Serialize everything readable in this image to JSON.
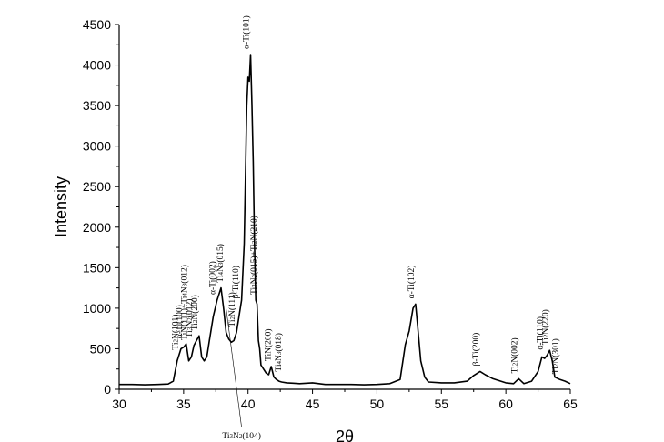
{
  "chart_data": {
    "type": "line",
    "title": "",
    "xlabel": "2θ",
    "ylabel": "Intensity",
    "xlim": [
      30,
      65
    ],
    "ylim": [
      0,
      4500
    ],
    "xticks": [
      30,
      35,
      40,
      45,
      50,
      55,
      60,
      65
    ],
    "yticks": [
      0,
      500,
      1000,
      1500,
      2000,
      2500,
      3000,
      3500,
      4000,
      4500
    ],
    "grid": false,
    "series": [
      {
        "x": [
          30,
          31,
          32,
          33,
          33.8,
          34.2,
          34.5,
          34.8,
          35.0,
          35.2,
          35.4,
          35.6,
          35.8,
          36.0,
          36.2,
          36.4,
          36.6,
          36.8,
          37.0,
          37.3,
          37.6,
          37.9,
          38.1,
          38.3,
          38.5,
          38.7,
          38.9,
          39.1,
          39.3,
          39.5,
          39.7,
          39.9,
          40.0,
          40.1,
          40.2,
          40.3,
          40.4,
          40.5,
          40.6,
          40.7,
          40.8,
          40.9,
          41.0,
          41.2,
          41.4,
          41.6,
          41.8,
          42.0,
          42.2,
          42.4,
          42.6,
          43.0,
          43.5,
          44,
          45,
          46,
          47,
          48,
          49,
          50,
          51,
          51.8,
          52.2,
          52.5,
          52.8,
          53.0,
          53.2,
          53.4,
          53.7,
          54,
          55,
          56,
          57,
          57.5,
          58,
          58.4,
          59,
          60,
          60.6,
          61,
          61.4,
          62,
          62.5,
          62.8,
          63.0,
          63.2,
          63.4,
          63.6,
          63.8,
          64.2,
          64.6,
          65
        ],
        "y": [
          60,
          60,
          55,
          60,
          65,
          100,
          350,
          500,
          520,
          560,
          350,
          400,
          540,
          600,
          660,
          400,
          350,
          400,
          600,
          900,
          1100,
          1250,
          1000,
          700,
          620,
          580,
          600,
          700,
          900,
          1100,
          1800,
          3500,
          3850,
          3800,
          4130,
          3500,
          2800,
          1800,
          1100,
          1050,
          600,
          500,
          300,
          250,
          200,
          180,
          280,
          150,
          120,
          100,
          90,
          80,
          75,
          70,
          80,
          60,
          60,
          60,
          55,
          60,
          70,
          120,
          550,
          720,
          1000,
          1050,
          700,
          350,
          150,
          90,
          80,
          80,
          100,
          170,
          220,
          180,
          130,
          80,
          70,
          130,
          70,
          100,
          220,
          400,
          380,
          420,
          480,
          350,
          150,
          120,
          100,
          70
        ]
      }
    ],
    "annotations": [
      {
        "text": "Ti2N(101)",
        "x": 34.7,
        "y": 420
      },
      {
        "text": "α-Ti(100)",
        "x": 35.0,
        "y": 560
      },
      {
        "text": "TiN(111)+Ti4N3(012)",
        "x": 35.4,
        "y": 540
      },
      {
        "text": "Ti3N2(012)",
        "x": 35.8,
        "y": 570
      },
      {
        "text": "Ti2N(200)",
        "x": 36.2,
        "y": 660
      },
      {
        "text": "α-Ti(002)",
        "x": 37.6,
        "y": 1100
      },
      {
        "text": "Ti4N3(015)",
        "x": 38.2,
        "y": 1250
      },
      {
        "text": "Ti2N(111)",
        "x": 39.1,
        "y": 700
      },
      {
        "text": "β-Ti(110)",
        "x": 39.4,
        "y": 1050
      },
      {
        "text": "α-Ti(101)",
        "x": 40.2,
        "y": 4130
      },
      {
        "text": "Ti3N2(015)+Ti2N(210)",
        "x": 40.8,
        "y": 1100
      },
      {
        "text": "TiN(200)",
        "x": 41.9,
        "y": 280
      },
      {
        "text": "Ti4N3(018)",
        "x": 42.7,
        "y": 150
      },
      {
        "text": "α-Ti(102)",
        "x": 53.0,
        "y": 1050
      },
      {
        "text": "β-Ti(200)",
        "x": 58.0,
        "y": 220
      },
      {
        "text": "Ti2N(002)",
        "x": 61.0,
        "y": 130
      },
      {
        "text": "α-Ti(110)",
        "x": 63.0,
        "y": 420
      },
      {
        "text": "Ti2N(220)",
        "x": 63.4,
        "y": 480
      },
      {
        "text": "Ti2N(301)",
        "x": 64.2,
        "y": 120
      },
      {
        "text": "Ti3N2(104)",
        "x": 39.5,
        "y": -100
      }
    ]
  }
}
